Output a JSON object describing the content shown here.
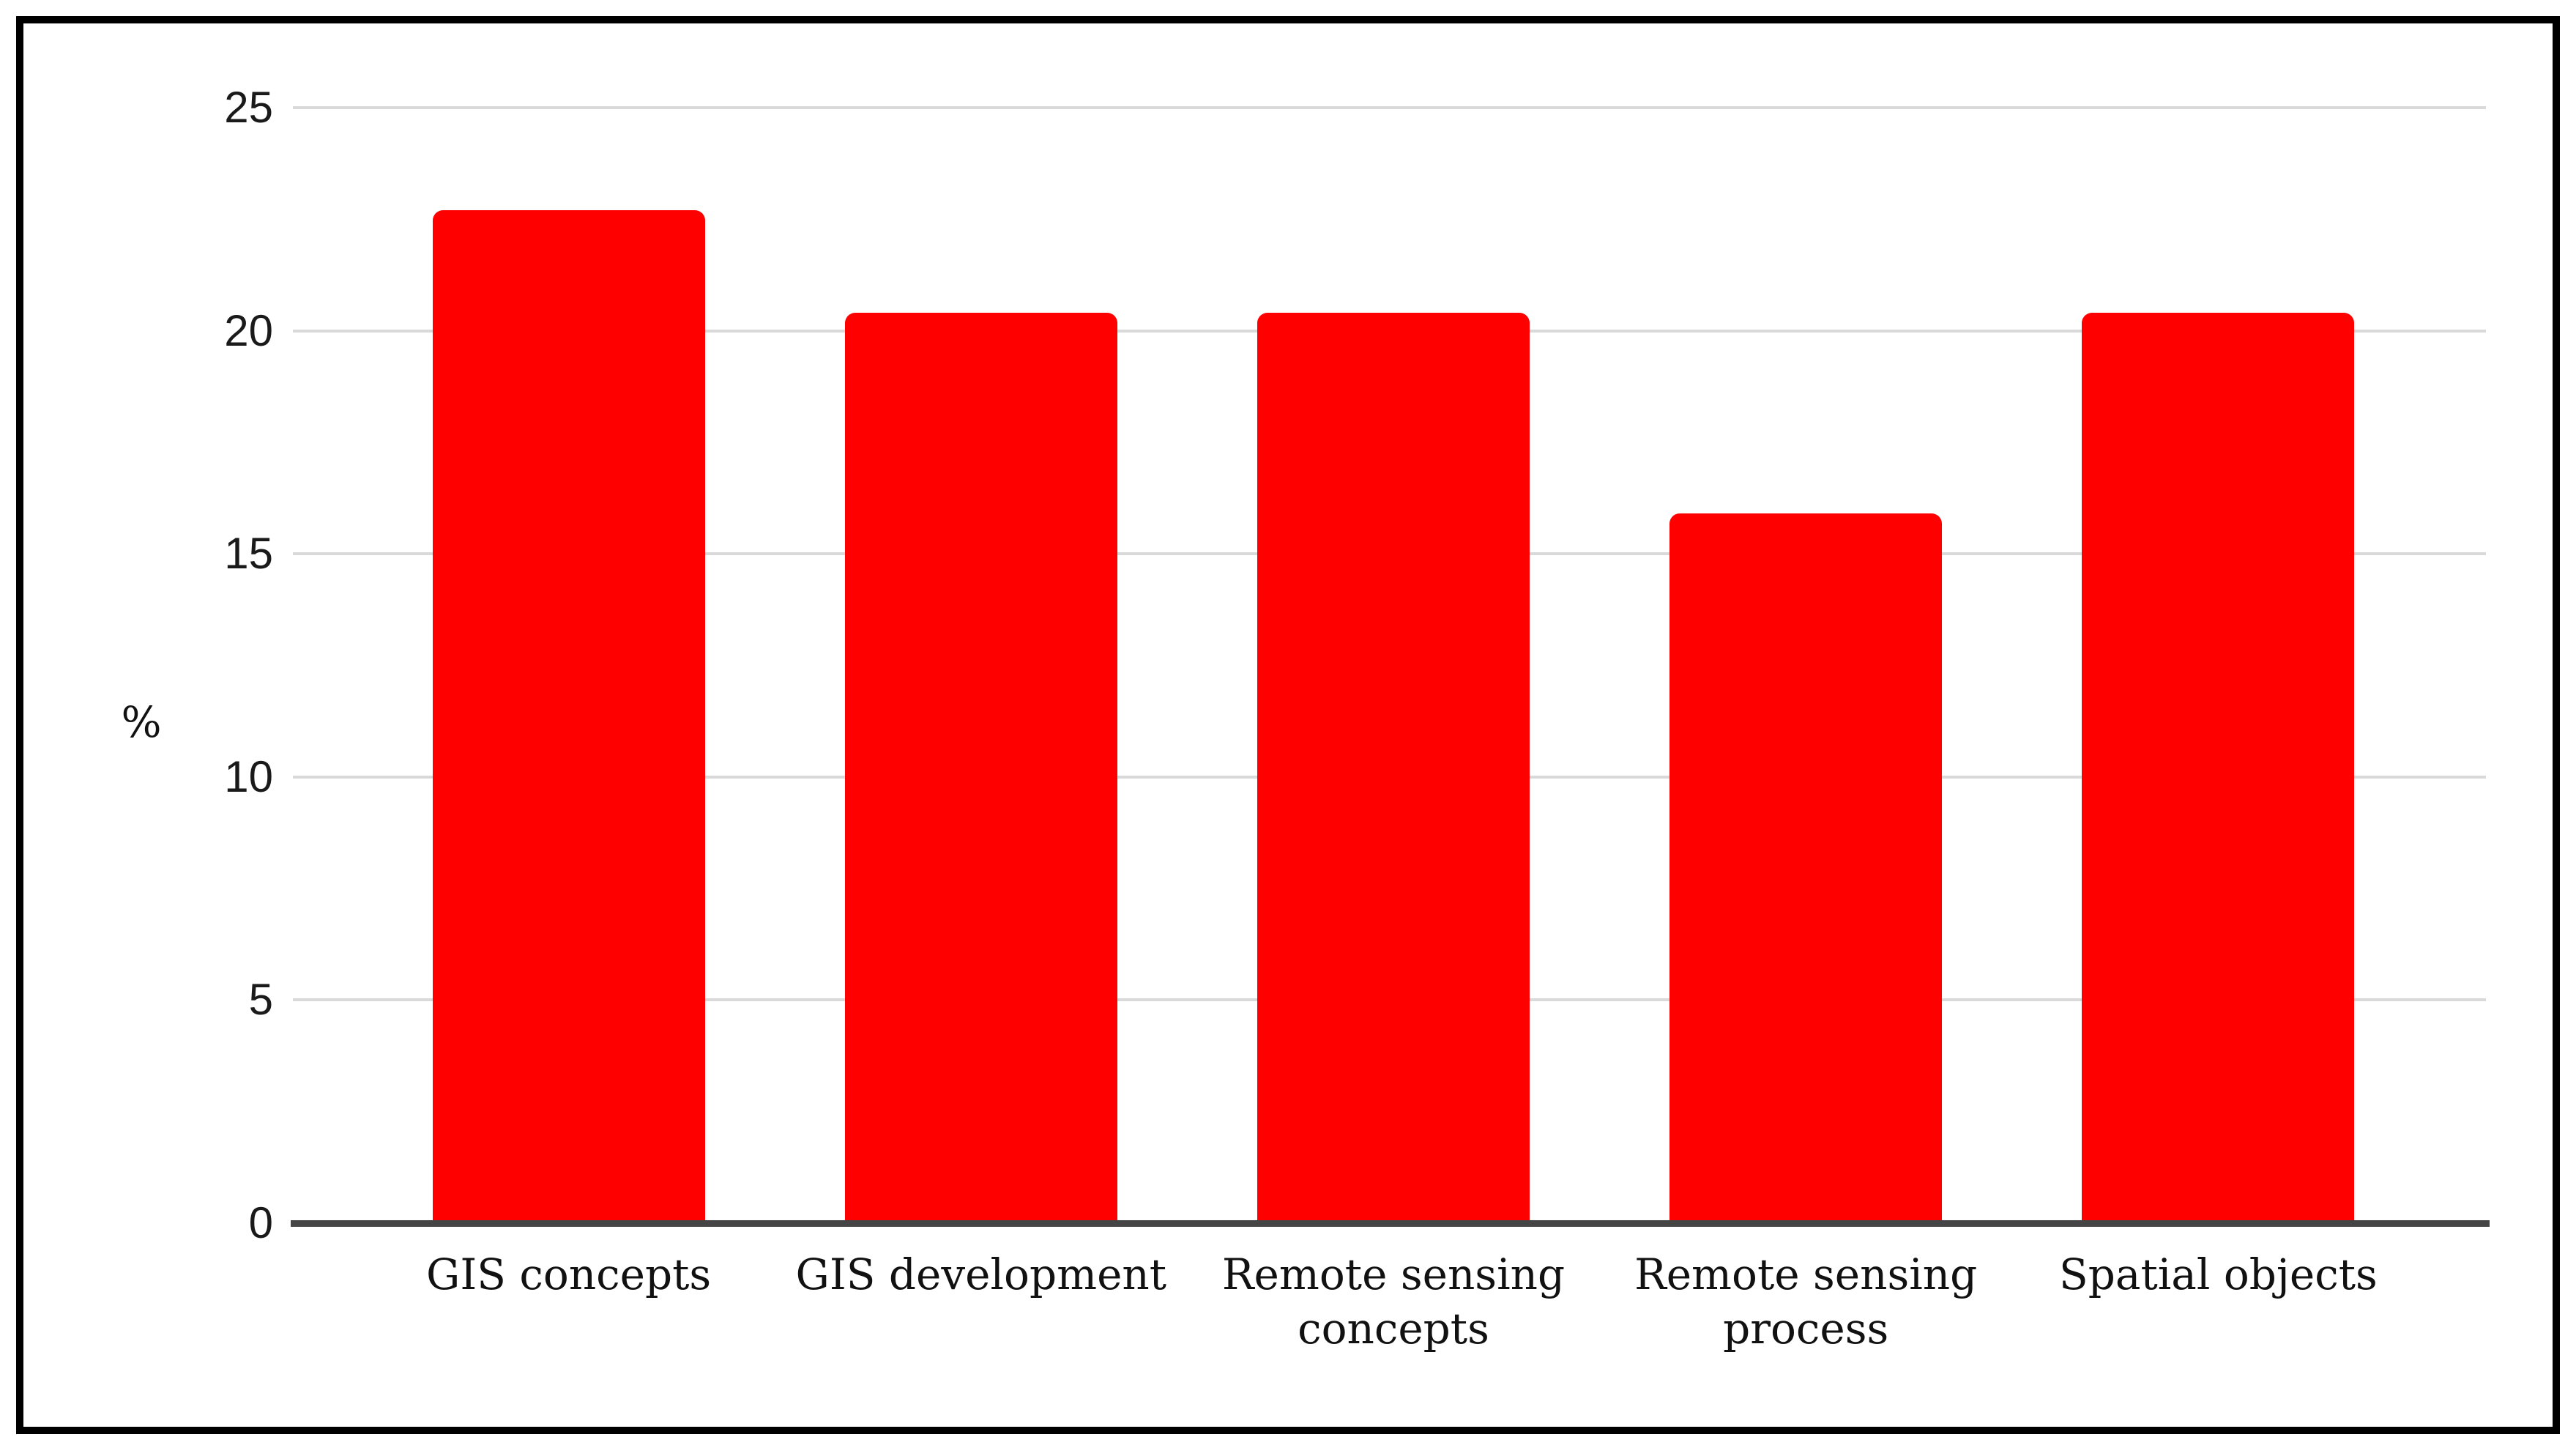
{
  "chart_data": {
    "type": "bar",
    "title": "",
    "categories": [
      "GIS concepts",
      "GIS development",
      "Remote sensing concepts",
      "Remote sensing process",
      "Spatial objects"
    ],
    "values": [
      22.7,
      20.4,
      20.4,
      15.9,
      20.4
    ],
    "xlabel": "",
    "ylabel": "%",
    "ylim": [
      0,
      25
    ],
    "yticks": [
      0,
      5,
      10,
      15,
      20,
      25
    ],
    "grid": true,
    "legend_position": "none",
    "bar_color": "#ff0000",
    "gridline_color": "#d9d9d9",
    "axis_line_color": "#454545",
    "tick_label_color": "#1a1a1a",
    "category_label_color": "#111111",
    "frame_border_color": "#000000",
    "background_color": "#ffffff"
  }
}
